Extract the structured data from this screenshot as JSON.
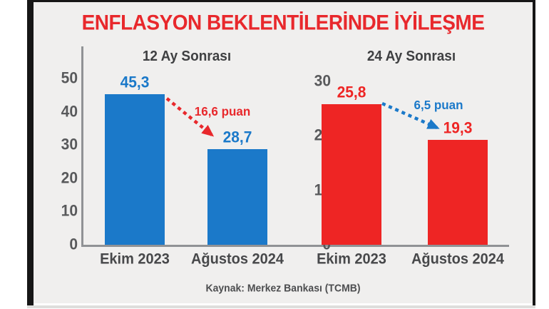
{
  "title": {
    "text": "ENFLASYON BEKLENTİLERİNDE İYİLEŞME",
    "color": "#e8282c"
  },
  "source": "Kaynak: Merkez Bankası (TCMB)",
  "colors": {
    "panel_bg": "#f0efee",
    "frame": "#161616",
    "axis_line": "#909295",
    "blue": "#1b79c9",
    "red": "#ee2524"
  },
  "chart_data": [
    {
      "type": "bar",
      "title": "12 Ay Sonrası",
      "categories": [
        "Ekim 2023",
        "Ağustos 2024"
      ],
      "values": [
        45.3,
        28.7
      ],
      "value_labels": [
        "45,3",
        "28,7"
      ],
      "bar_color": "#1b79c9",
      "value_label_color": "#1b79c9",
      "ylim": [
        0,
        50
      ],
      "yticks": [
        0,
        10,
        20,
        30,
        40,
        50
      ],
      "grid": false,
      "annotation": {
        "label": "16,6 puan",
        "color": "#e8282c"
      }
    },
    {
      "type": "bar",
      "title": "24 Ay Sonrası",
      "categories": [
        "Ekim 2023",
        "Ağustos 2024"
      ],
      "values": [
        25.8,
        19.3
      ],
      "value_labels": [
        "25,8",
        "19,3"
      ],
      "bar_color": "#ee2524",
      "value_label_color": "#ee2524",
      "ylim": [
        0,
        30
      ],
      "yticks": [
        0,
        10,
        20,
        30
      ],
      "grid": false,
      "annotation": {
        "label": "6,5 puan",
        "color": "#1b79c9"
      }
    }
  ]
}
